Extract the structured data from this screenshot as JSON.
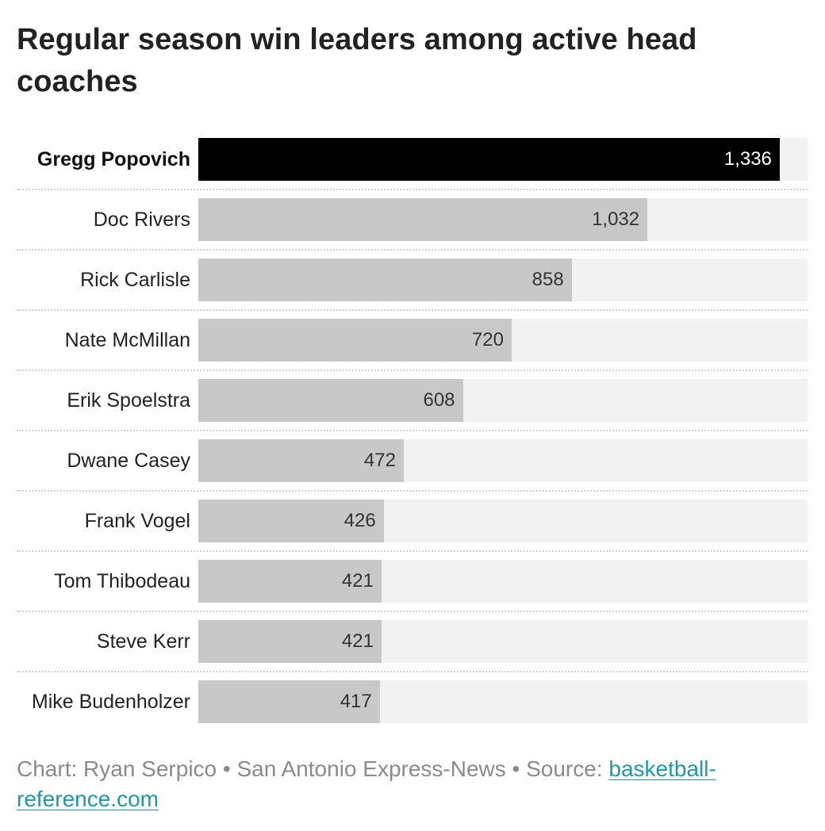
{
  "chart_data": {
    "type": "bar",
    "orientation": "horizontal",
    "title": "Regular season win leaders among active head coaches",
    "categories": [
      "Gregg Popovich",
      "Doc Rivers",
      "Rick Carlisle",
      "Nate McMillan",
      "Erik Spoelstra",
      "Dwane Casey",
      "Frank Vogel",
      "Tom Thibodeau",
      "Steve Kerr",
      "Mike Budenholzer"
    ],
    "values": [
      1336,
      1032,
      858,
      720,
      608,
      472,
      426,
      421,
      421,
      417
    ],
    "value_labels": [
      "1,336",
      "1,032",
      "858",
      "720",
      "608",
      "472",
      "426",
      "421",
      "421",
      "417"
    ],
    "highlighted": "Gregg Popovich",
    "xlim": [
      0,
      1400
    ],
    "grid": false,
    "legend": "none",
    "colors": {
      "highlight": "#000000",
      "bar": "#c8c8c8",
      "track": "#f2f2f2"
    }
  },
  "footer": {
    "credit": "Chart: Ryan Serpico • San Antonio Express-News • Source: ",
    "source_link": "basketball-reference.com"
  }
}
